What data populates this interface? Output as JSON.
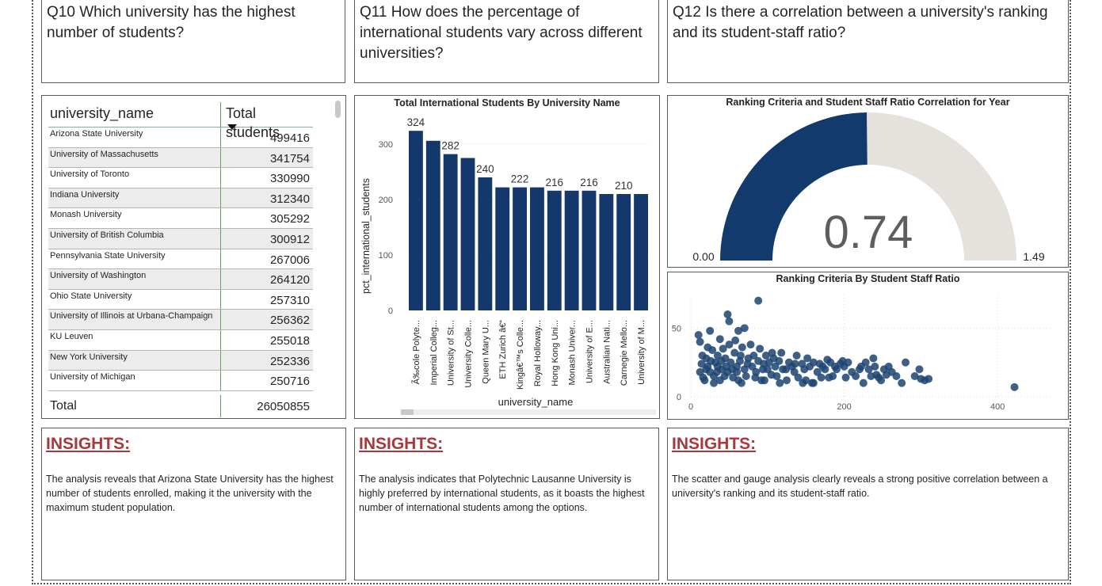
{
  "questions": {
    "q10": "Q10 Which university has the highest number of students?",
    "q11": "Q11 How does the percentage of international students vary across different universities?",
    "q12": "Q12 Is there a correlation between a university's ranking and its student-staff ratio?"
  },
  "table": {
    "col_name": "university_name",
    "col_total": "Total students",
    "rows": [
      {
        "name": "Arizona State University",
        "value": "499416"
      },
      {
        "name": "University of Massachusetts",
        "value": "341754"
      },
      {
        "name": "University of Toronto",
        "value": "330990"
      },
      {
        "name": "Indiana University",
        "value": "312340"
      },
      {
        "name": "Monash University",
        "value": "305292"
      },
      {
        "name": "University of British Columbia",
        "value": "300912"
      },
      {
        "name": "Pennsylvania State University",
        "value": "267006"
      },
      {
        "name": "University of Washington",
        "value": "264120"
      },
      {
        "name": "Ohio State University",
        "value": "257310"
      },
      {
        "name": "University of Illinois at Urbana-Champaign",
        "value": "256362"
      },
      {
        "name": "KU Leuven",
        "value": "255018"
      },
      {
        "name": "New York University",
        "value": "252336"
      },
      {
        "name": "University of Michigan",
        "value": "250716"
      }
    ],
    "total_label": "Total",
    "total_value": "26050855"
  },
  "chart_data": [
    {
      "type": "bar",
      "title": "Total International Students By University Name",
      "xlabel": "university_name",
      "ylabel": "pct_international_students",
      "ylim": [
        0,
        330
      ],
      "yticks": [
        "0",
        "100",
        "200",
        "300"
      ],
      "categories": [
        "Ã‰cole Polyte...",
        "Imperial Colleg...",
        "University of St...",
        "University Colle...",
        "Queen Mary U...",
        "ETH Zurich â€“",
        "Kingâ€™s Colle...",
        "Royal Holloway...",
        "Hong Kong Uni...",
        "Monash Univer...",
        "University of E...",
        "Australian Nati...",
        "Carnegie Mello...",
        "University of M..."
      ],
      "values": [
        324,
        306,
        282,
        275,
        240,
        222,
        222,
        222,
        216,
        216,
        216,
        210,
        210,
        210
      ],
      "data_labels": [
        "324",
        "",
        "282",
        "",
        "240",
        "",
        "222",
        "",
        "216",
        "",
        "216",
        "",
        "210",
        ""
      ]
    },
    {
      "type": "gauge",
      "title": "Ranking Criteria and Student Staff Ratio Correlation for Year",
      "value": 0.74,
      "value_label": "0.74",
      "min_label": "0.00",
      "max_label": "1.49",
      "min": 0,
      "max": 1.49
    },
    {
      "type": "scatter",
      "title": "Ranking Criteria By Student Staff Ratio",
      "xlim": [
        0,
        470
      ],
      "ylim": [
        0,
        75
      ],
      "xticks": [
        "0",
        "200",
        "400"
      ],
      "yticks": [
        "0",
        "50"
      ],
      "points": [
        [
          10,
          45
        ],
        [
          12,
          40
        ],
        [
          25,
          48
        ],
        [
          38,
          42
        ],
        [
          50,
          55
        ],
        [
          58,
          41
        ],
        [
          62,
          48
        ],
        [
          70,
          50
        ],
        [
          88,
          70
        ],
        [
          48,
          60
        ],
        [
          15,
          30
        ],
        [
          20,
          28
        ],
        [
          22,
          22
        ],
        [
          25,
          18
        ],
        [
          28,
          34
        ],
        [
          30,
          15
        ],
        [
          32,
          25
        ],
        [
          35,
          30
        ],
        [
          38,
          12
        ],
        [
          40,
          20
        ],
        [
          42,
          35
        ],
        [
          45,
          28
        ],
        [
          48,
          18
        ],
        [
          50,
          38
        ],
        [
          52,
          25
        ],
        [
          55,
          14
        ],
        [
          57,
          32
        ],
        [
          60,
          22
        ],
        [
          62,
          12
        ],
        [
          65,
          30
        ],
        [
          67,
          36
        ],
        [
          70,
          20
        ],
        [
          72,
          15
        ],
        [
          75,
          28
        ],
        [
          78,
          38
        ],
        [
          80,
          22
        ],
        [
          82,
          30
        ],
        [
          85,
          18
        ],
        [
          88,
          26
        ],
        [
          90,
          35
        ],
        [
          92,
          12
        ],
        [
          95,
          24
        ],
        [
          98,
          30
        ],
        [
          100,
          20
        ],
        [
          105,
          16
        ],
        [
          108,
          28
        ],
        [
          110,
          22
        ],
        [
          112,
          15
        ],
        [
          115,
          26
        ],
        [
          118,
          32
        ],
        [
          120,
          20
        ],
        [
          125,
          12
        ],
        [
          128,
          25
        ],
        [
          132,
          22
        ],
        [
          135,
          18
        ],
        [
          138,
          30
        ],
        [
          140,
          14
        ],
        [
          145,
          24
        ],
        [
          148,
          20
        ],
        [
          150,
          12
        ],
        [
          152,
          28
        ],
        [
          155,
          22
        ],
        [
          158,
          10
        ],
        [
          160,
          25
        ],
        [
          165,
          18
        ],
        [
          168,
          24
        ],
        [
          170,
          14
        ],
        [
          172,
          22
        ],
        [
          175,
          20
        ],
        [
          178,
          27
        ],
        [
          182,
          25
        ],
        [
          185,
          15
        ],
        [
          188,
          22
        ],
        [
          190,
          20
        ],
        [
          195,
          24
        ],
        [
          198,
          26
        ],
        [
          200,
          22
        ],
        [
          205,
          25
        ],
        [
          210,
          18
        ],
        [
          215,
          15
        ],
        [
          220,
          20
        ],
        [
          225,
          10
        ],
        [
          228,
          25
        ],
        [
          232,
          20
        ],
        [
          235,
          15
        ],
        [
          238,
          28
        ],
        [
          240,
          22
        ],
        [
          245,
          14
        ],
        [
          248,
          12
        ],
        [
          252,
          20
        ],
        [
          255,
          16
        ],
        [
          258,
          22
        ],
        [
          262,
          18
        ],
        [
          268,
          15
        ],
        [
          275,
          10
        ],
        [
          280,
          25
        ],
        [
          292,
          15
        ],
        [
          298,
          20
        ],
        [
          300,
          13
        ],
        [
          305,
          12
        ],
        [
          310,
          13
        ],
        [
          422,
          7
        ],
        [
          18,
          12
        ],
        [
          22,
          36
        ],
        [
          30,
          10
        ],
        [
          35,
          22
        ],
        [
          44,
          15
        ],
        [
          60,
          18
        ],
        [
          66,
          10
        ],
        [
          96,
          12
        ],
        [
          102,
          25
        ],
        [
          116,
          10
        ],
        [
          12,
          18
        ],
        [
          14,
          24
        ],
        [
          16,
          14
        ],
        [
          20,
          20
        ],
        [
          26,
          26
        ],
        [
          34,
          18
        ],
        [
          40,
          26
        ],
        [
          46,
          22
        ],
        [
          54,
          20
        ],
        [
          64,
          26
        ],
        [
          74,
          24
        ],
        [
          84,
          14
        ],
        [
          94,
          20
        ],
        [
          106,
          32
        ],
        [
          124,
          20
        ],
        [
          136,
          24
        ],
        [
          146,
          10
        ],
        [
          160,
          10
        ],
        [
          180,
          14
        ],
        [
          202,
          14
        ],
        [
          222,
          22
        ],
        [
          242,
          16
        ]
      ]
    }
  ],
  "insights": {
    "title": "INSIGHTS:",
    "q10_text": "The analysis reveals that Arizona State University has the highest number of students enrolled, making it the university with the maximum student population.",
    "q11_text": "The analysis indicates that Polytechnic Lausanne University is highly preferred by international students, as it boasts the highest number of international students among the options.",
    "q12_text": "The scatter and gauge analysis clearly reveals a strong positive correlation between a university's ranking and its student-staff ratio."
  },
  "colors": {
    "bar": "#14386b",
    "gauge_fill": "#123a6c",
    "gauge_track": "#e5e1dc",
    "scatter": "#1d4471",
    "insight_title": "#a8383c"
  }
}
